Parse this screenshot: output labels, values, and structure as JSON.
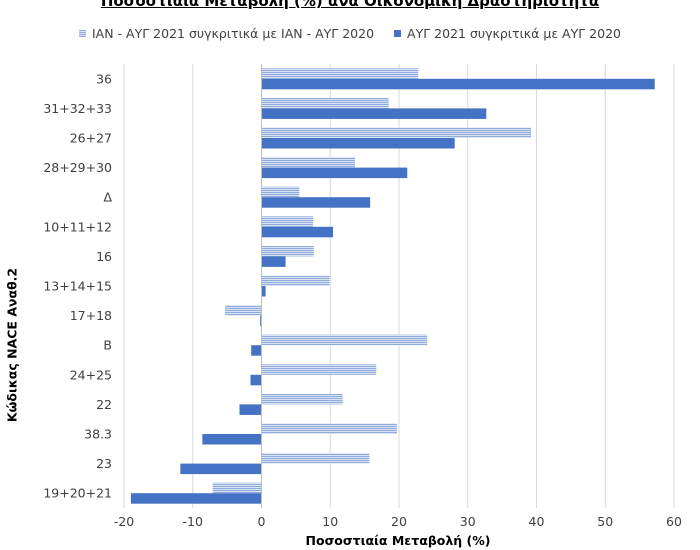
{
  "chart_data": {
    "type": "bar",
    "orientation": "horizontal",
    "title": "Ποσοστιαία Μεταβολή (%) ανά Οικονομική Δραστηριότητα",
    "xlabel": "Ποσοστιαία Μεταβολή (%)",
    "ylabel": "Κώδικας NACE Αναθ.2",
    "xlim": [
      -20,
      60
    ],
    "xticks": [
      "-20",
      "-10",
      "0",
      "10",
      "20",
      "30",
      "40",
      "50",
      "60"
    ],
    "grid": "vertical",
    "legend_position": "top",
    "categories": [
      "36",
      "31+32+33",
      "26+27",
      "28+29+30",
      "Δ",
      "10+11+12",
      "16",
      "13+14+15",
      "17+18",
      "Β",
      "24+25",
      "22",
      "38.3",
      "23",
      "19+20+21"
    ],
    "series": [
      {
        "name": "ΙΑΝ - ΑΥΓ 2021 συγκριτικά με ΙΑΝ - ΑΥΓ 2020",
        "color": "#8faadc",
        "pattern": "hatched",
        "values": [
          22.8,
          18.5,
          39.2,
          13.6,
          5.5,
          7.5,
          7.6,
          9.9,
          -5.3,
          24.1,
          16.7,
          11.8,
          19.7,
          15.7,
          -7.1
        ]
      },
      {
        "name": "ΑΥΓ 2021 συγκριτικά με ΑΥΓ 2020",
        "color": "#4472c4",
        "pattern": "solid",
        "values": [
          57.2,
          32.7,
          28.1,
          21.2,
          15.8,
          10.4,
          3.5,
          0.6,
          -0.2,
          -1.5,
          -1.6,
          -3.2,
          -8.6,
          -11.8,
          -19.0
        ]
      }
    ]
  }
}
